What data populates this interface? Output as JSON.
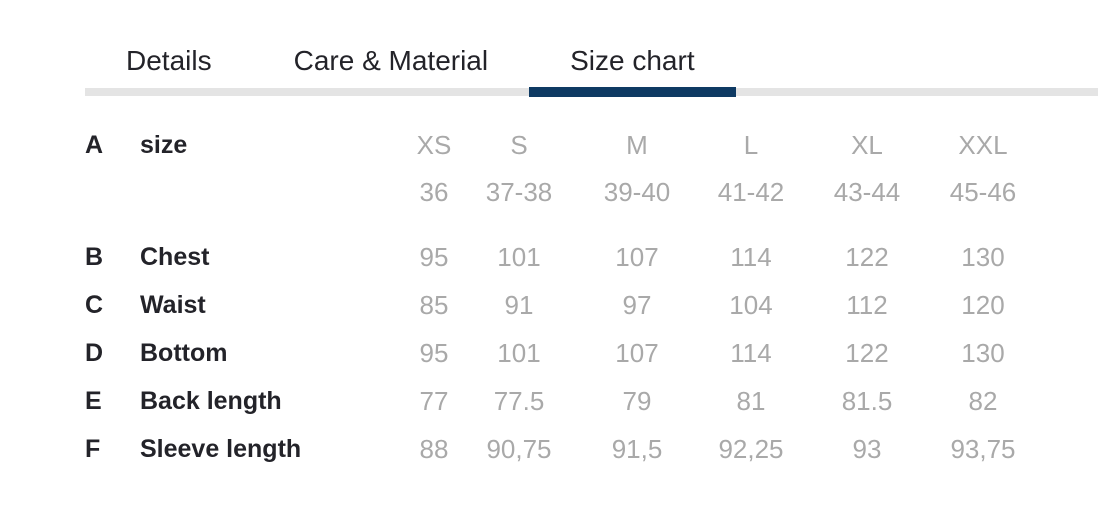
{
  "tabs": {
    "items": [
      {
        "label": "Details",
        "active": false
      },
      {
        "label": "Care & Material",
        "active": false
      },
      {
        "label": "Size chart",
        "active": true
      }
    ]
  },
  "size_chart": {
    "columns": [
      "XS",
      "S",
      "M",
      "L",
      "XL",
      "XXL"
    ],
    "header_row": {
      "letter": "A",
      "label": "size",
      "sub_values": [
        "36",
        "37-38",
        "39-40",
        "41-42",
        "43-44",
        "45-46"
      ]
    },
    "rows": [
      {
        "letter": "B",
        "label": "Chest",
        "values": [
          "95",
          "101",
          "107",
          "114",
          "122",
          "130"
        ]
      },
      {
        "letter": "C",
        "label": "Waist",
        "values": [
          "85",
          "91",
          "97",
          "104",
          "112",
          "120"
        ]
      },
      {
        "letter": "D",
        "label": "Bottom",
        "values": [
          "95",
          "101",
          "107",
          "114",
          "122",
          "130"
        ]
      },
      {
        "letter": "E",
        "label": "Back length",
        "values": [
          "77",
          "77.5",
          "79",
          "81",
          "81.5",
          "82"
        ]
      },
      {
        "letter": "F",
        "label": "Sleeve length",
        "values": [
          "88",
          "90,75",
          "91,5",
          "92,25",
          "93",
          "93,75"
        ]
      }
    ]
  },
  "colors": {
    "accent_navy": "#0e3a63",
    "divider_gray": "#e4e4e4",
    "text_dark": "#232329",
    "text_gray": "#a9a9a9"
  }
}
